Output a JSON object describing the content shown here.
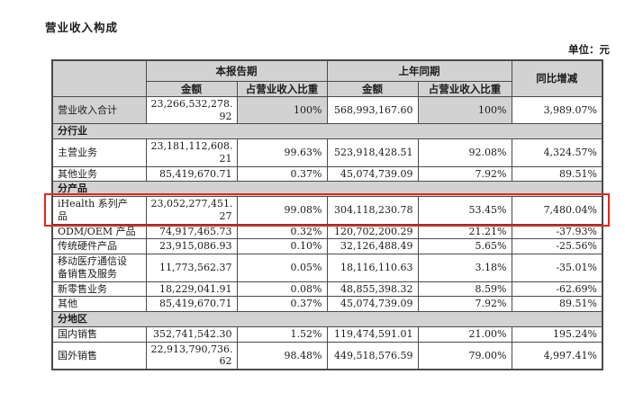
{
  "page": {
    "title": "营业收入构成",
    "unit_label": "单位：元"
  },
  "table": {
    "header": {
      "current_period": "本报告期",
      "prior_period": "上年同期",
      "yoy_change": "同比增减",
      "amount": "金额",
      "share": "占营业收入比重"
    },
    "rows": [
      {
        "type": "data",
        "shaded": true,
        "label": "营业收入合计",
        "cur_amount": "23,266,532,278.\n92",
        "cur_share": "100%",
        "prior_amount": "568,993,167.60",
        "prior_share": "100%",
        "yoy": "3,989.07%"
      },
      {
        "type": "section",
        "label": "分行业"
      },
      {
        "type": "data",
        "label": "主营业务",
        "cur_amount": "23,181,112,608.\n21",
        "cur_share": "99.63%",
        "prior_amount": "523,918,428.51",
        "prior_share": "92.08%",
        "yoy": "4,324.57%"
      },
      {
        "type": "data",
        "label": "其他业务",
        "cur_amount": "85,419,670.71",
        "cur_share": "0.37%",
        "prior_amount": "45,074,739.09",
        "prior_share": "7.92%",
        "yoy": "89.51%"
      },
      {
        "type": "section",
        "label": "分产品"
      },
      {
        "type": "data",
        "highlight": true,
        "label": "iHealth 系列产\n品",
        "cur_amount": "23,052,277,451.\n27",
        "cur_share": "99.08%",
        "prior_amount": "304,118,230.78",
        "prior_share": "53.45%",
        "yoy": "7,480.04%"
      },
      {
        "type": "data",
        "label": "ODM/OEM 产品",
        "cur_amount": "74,917,465.73",
        "cur_share": "0.32%",
        "prior_amount": "120,702,200.29",
        "prior_share": "21.21%",
        "yoy": "-37.93%"
      },
      {
        "type": "data",
        "label": "传统硬件产品",
        "cur_amount": "23,915,086.93",
        "cur_share": "0.10%",
        "prior_amount": "32,126,488.49",
        "prior_share": "5.65%",
        "yoy": "-25.56%"
      },
      {
        "type": "data",
        "label": "移动医疗通信设\n备销售及服务",
        "cur_amount": "11,773,562.37",
        "cur_share": "0.05%",
        "prior_amount": "18,116,110.63",
        "prior_share": "3.18%",
        "yoy": "-35.01%"
      },
      {
        "type": "data",
        "label": "新零售业务",
        "cur_amount": "18,229,041.91",
        "cur_share": "0.08%",
        "prior_amount": "48,855,398.32",
        "prior_share": "8.59%",
        "yoy": "-62.69%"
      },
      {
        "type": "data",
        "label": "其他",
        "cur_amount": "85,419,670.71",
        "cur_share": "0.37%",
        "prior_amount": "45,074,739.09",
        "prior_share": "7.92%",
        "yoy": "89.51%"
      },
      {
        "type": "section",
        "label": "分地区"
      },
      {
        "type": "data",
        "label": "国内销售",
        "cur_amount": "352,741,542.30",
        "cur_share": "1.52%",
        "prior_amount": "119,474,591.01",
        "prior_share": "21.00%",
        "yoy": "195.24%"
      },
      {
        "type": "data",
        "label": "国外销售",
        "cur_amount": "22,913,790,736.\n62",
        "cur_share": "98.48%",
        "prior_amount": "449,518,576.59",
        "prior_share": "79.00%",
        "yoy": "4,997.41%"
      }
    ],
    "colors": {
      "header_bg": "#d2d2d2",
      "border": "#4a4a4a",
      "highlight": "#e5261f"
    }
  }
}
